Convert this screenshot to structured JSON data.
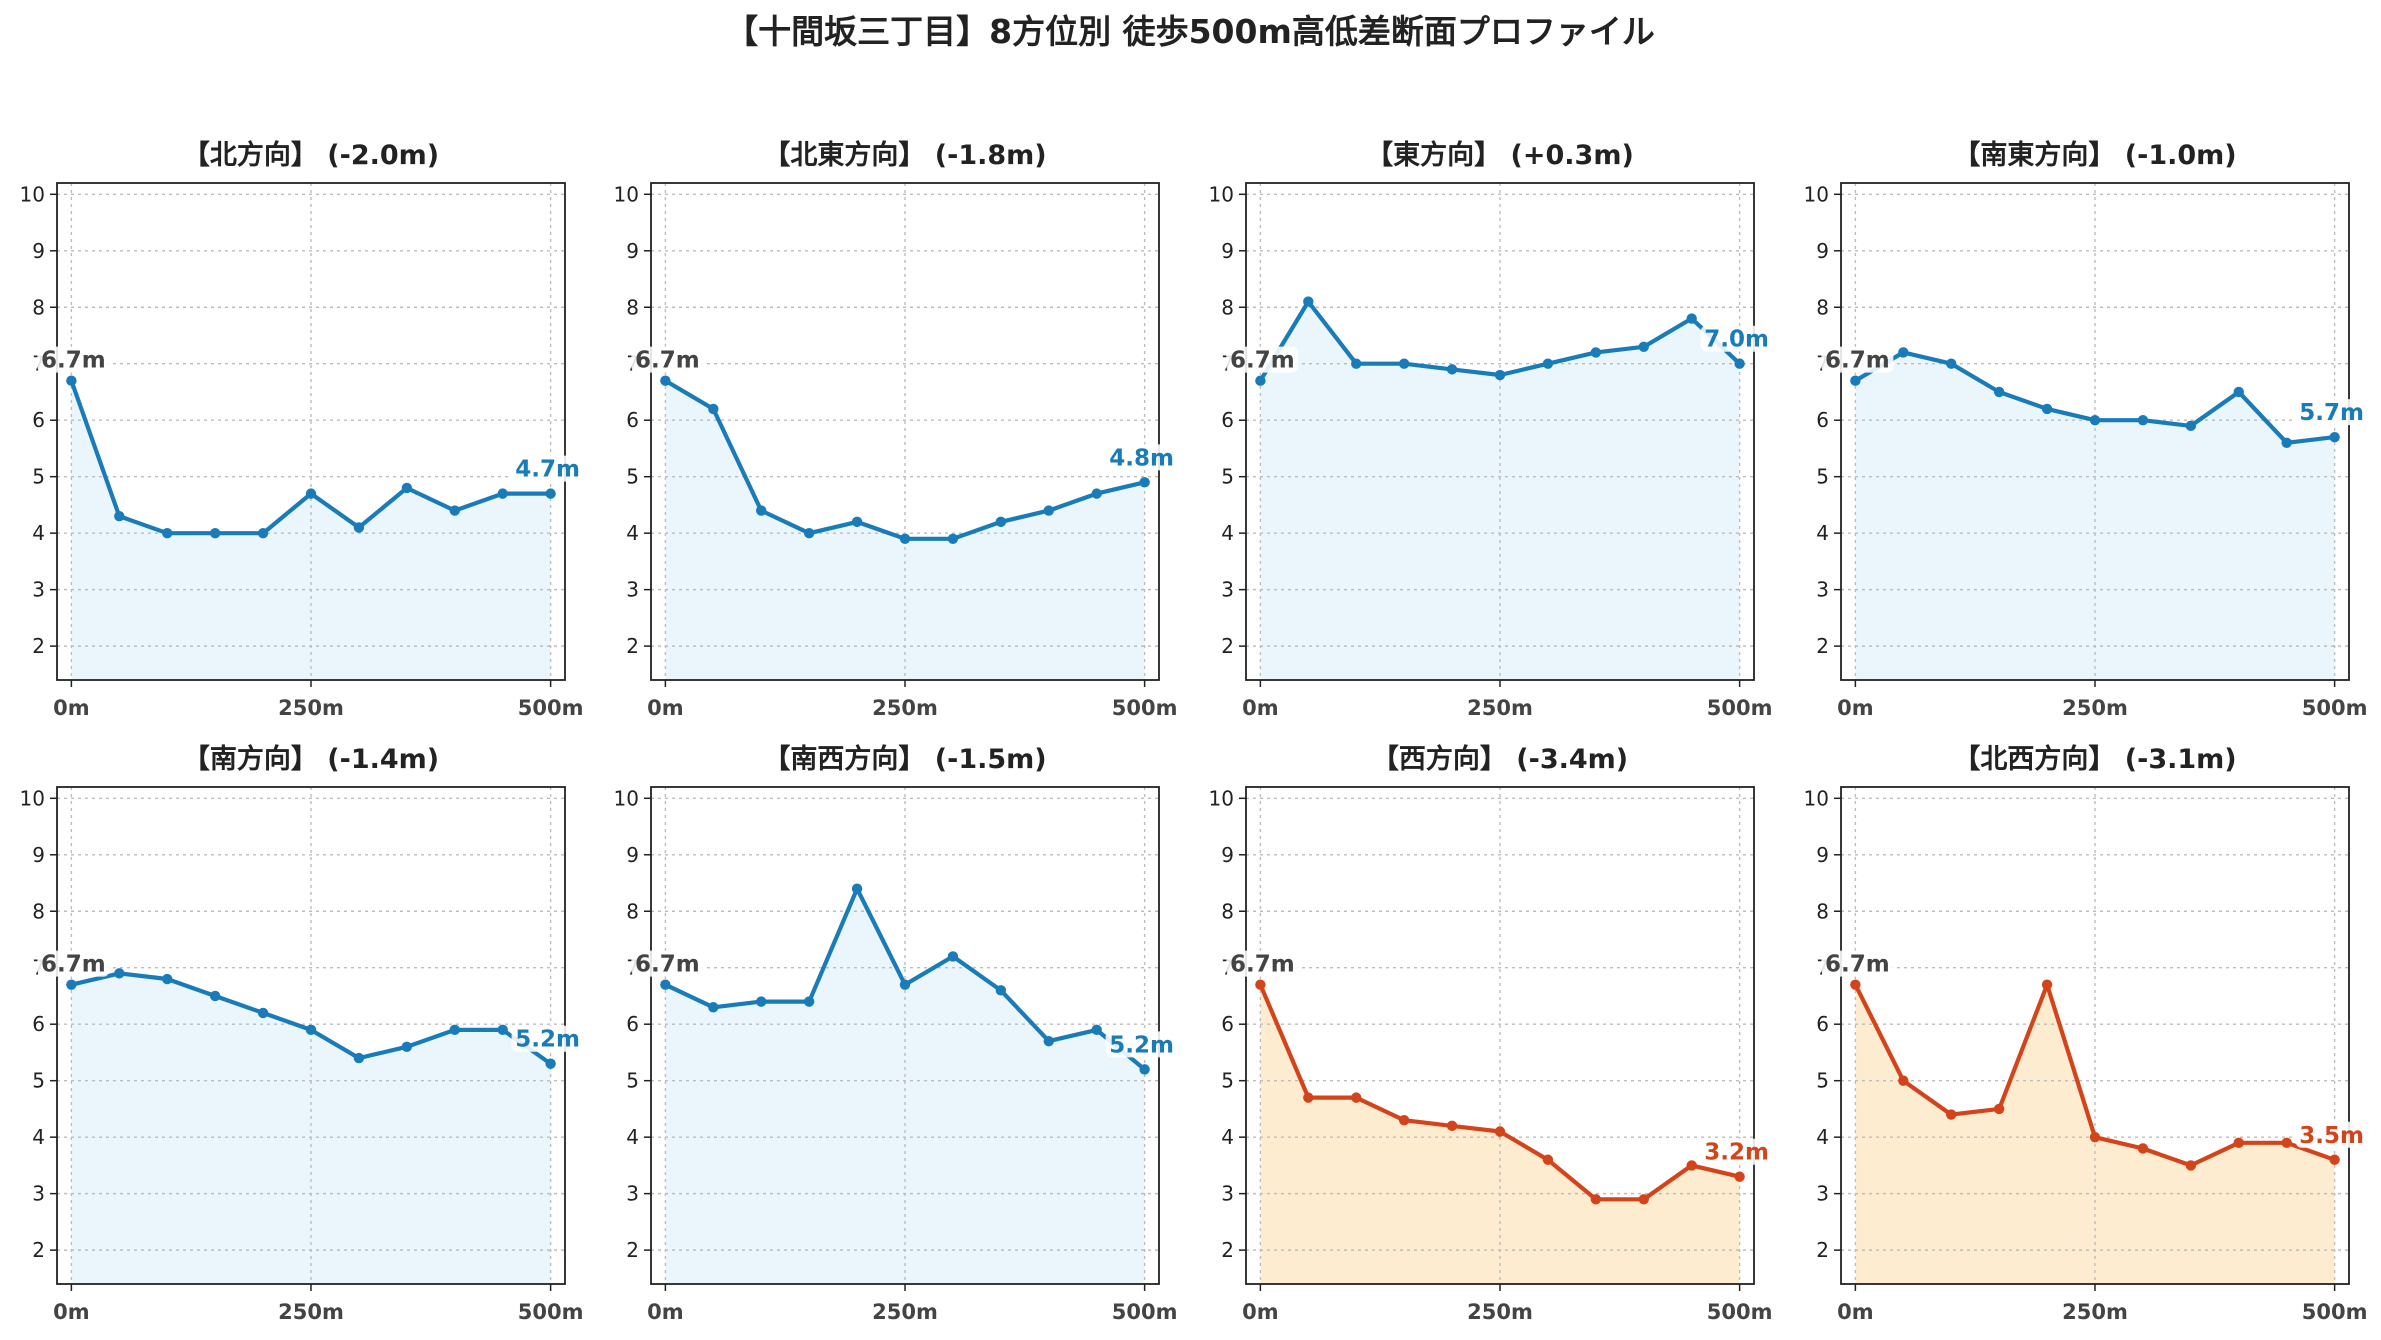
{
  "title": "【十間坂三丁目】8方位別 徒歩500m高低差断面プロファイル",
  "colors": {
    "down": "#1a7bb9",
    "down_fill": "#eaf6fb",
    "steep": "#d4441a",
    "steep_fill": "#feecd0",
    "start_label": "#444444"
  },
  "chart_data": [
    {
      "type": "area",
      "title": "【北方向】 (-2.0m)",
      "x": [
        0,
        50,
        100,
        150,
        200,
        250,
        300,
        350,
        400,
        450,
        500
      ],
      "values": [
        6.7,
        4.3,
        4.0,
        4.0,
        4.0,
        4.7,
        4.1,
        4.8,
        4.4,
        4.7,
        4.7
      ],
      "start_label": "6.7m",
      "end_label": "4.7m",
      "style": "down",
      "xticks": [
        "0m",
        "250m",
        "500m"
      ],
      "yticks": [
        "2",
        "3",
        "4",
        "5",
        "6",
        "7",
        "8",
        "9",
        "10"
      ],
      "ylim": [
        1.4,
        10.2
      ],
      "xlim": [
        -15,
        515
      ],
      "grid": true
    },
    {
      "type": "area",
      "title": "【北東方向】 (-1.8m)",
      "x": [
        0,
        50,
        100,
        150,
        200,
        250,
        300,
        350,
        400,
        450,
        500
      ],
      "values": [
        6.7,
        6.2,
        4.4,
        4.0,
        4.2,
        3.9,
        3.9,
        4.2,
        4.4,
        4.7,
        4.9
      ],
      "start_label": "6.7m",
      "end_label": "4.8m",
      "style": "down",
      "xticks": [
        "0m",
        "250m",
        "500m"
      ],
      "yticks": [
        "2",
        "3",
        "4",
        "5",
        "6",
        "7",
        "8",
        "9",
        "10"
      ],
      "ylim": [
        1.4,
        10.2
      ],
      "xlim": [
        -15,
        515
      ],
      "grid": true
    },
    {
      "type": "area",
      "title": "【東方向】 (+0.3m)",
      "x": [
        0,
        50,
        100,
        150,
        200,
        250,
        300,
        350,
        400,
        450,
        500
      ],
      "values": [
        6.7,
        8.1,
        7.0,
        7.0,
        6.9,
        6.8,
        7.0,
        7.2,
        7.3,
        7.8,
        7.0
      ],
      "start_label": "6.7m",
      "end_label": "7.0m",
      "style": "down",
      "xticks": [
        "0m",
        "250m",
        "500m"
      ],
      "yticks": [
        "2",
        "3",
        "4",
        "5",
        "6",
        "7",
        "8",
        "9",
        "10"
      ],
      "ylim": [
        1.4,
        10.2
      ],
      "xlim": [
        -15,
        515
      ],
      "grid": true
    },
    {
      "type": "area",
      "title": "【南東方向】 (-1.0m)",
      "x": [
        0,
        50,
        100,
        150,
        200,
        250,
        300,
        350,
        400,
        450,
        500
      ],
      "values": [
        6.7,
        7.2,
        7.0,
        6.5,
        6.2,
        6.0,
        6.0,
        5.9,
        6.5,
        5.6,
        5.7
      ],
      "start_label": "6.7m",
      "end_label": "5.7m",
      "style": "down",
      "xticks": [
        "0m",
        "250m",
        "500m"
      ],
      "yticks": [
        "2",
        "3",
        "4",
        "5",
        "6",
        "7",
        "8",
        "9",
        "10"
      ],
      "ylim": [
        1.4,
        10.2
      ],
      "xlim": [
        -15,
        515
      ],
      "grid": true
    },
    {
      "type": "area",
      "title": "【南方向】 (-1.4m)",
      "x": [
        0,
        50,
        100,
        150,
        200,
        250,
        300,
        350,
        400,
        450,
        500
      ],
      "values": [
        6.7,
        6.9,
        6.8,
        6.5,
        6.2,
        5.9,
        5.4,
        5.6,
        5.9,
        5.9,
        5.3
      ],
      "start_label": "6.7m",
      "end_label": "5.2m",
      "style": "down",
      "xticks": [
        "0m",
        "250m",
        "500m"
      ],
      "yticks": [
        "2",
        "3",
        "4",
        "5",
        "6",
        "7",
        "8",
        "9",
        "10"
      ],
      "ylim": [
        1.4,
        10.2
      ],
      "xlim": [
        -15,
        515
      ],
      "grid": true
    },
    {
      "type": "area",
      "title": "【南西方向】 (-1.5m)",
      "x": [
        0,
        50,
        100,
        150,
        200,
        250,
        300,
        350,
        400,
        450,
        500
      ],
      "values": [
        6.7,
        6.3,
        6.4,
        6.4,
        8.4,
        6.7,
        7.2,
        6.6,
        5.7,
        5.9,
        5.2
      ],
      "start_label": "6.7m",
      "end_label": "5.2m",
      "style": "down",
      "xticks": [
        "0m",
        "250m",
        "500m"
      ],
      "yticks": [
        "2",
        "3",
        "4",
        "5",
        "6",
        "7",
        "8",
        "9",
        "10"
      ],
      "ylim": [
        1.4,
        10.2
      ],
      "xlim": [
        -15,
        515
      ],
      "grid": true
    },
    {
      "type": "area",
      "title": "【西方向】 (-3.4m)",
      "x": [
        0,
        50,
        100,
        150,
        200,
        250,
        300,
        350,
        400,
        450,
        500
      ],
      "values": [
        6.7,
        4.7,
        4.7,
        4.3,
        4.2,
        4.1,
        3.6,
        2.9,
        2.9,
        3.5,
        3.3
      ],
      "start_label": "6.7m",
      "end_label": "3.2m",
      "style": "steep",
      "xticks": [
        "0m",
        "250m",
        "500m"
      ],
      "yticks": [
        "2",
        "3",
        "4",
        "5",
        "6",
        "7",
        "8",
        "9",
        "10"
      ],
      "ylim": [
        1.4,
        10.2
      ],
      "xlim": [
        -15,
        515
      ],
      "grid": true
    },
    {
      "type": "area",
      "title": "【北西方向】 (-3.1m)",
      "x": [
        0,
        50,
        100,
        150,
        200,
        250,
        300,
        350,
        400,
        450,
        500
      ],
      "values": [
        6.7,
        5.0,
        4.4,
        4.5,
        6.7,
        4.0,
        3.8,
        3.5,
        3.9,
        3.9,
        3.6
      ],
      "start_label": "6.7m",
      "end_label": "3.5m",
      "style": "steep",
      "xticks": [
        "0m",
        "250m",
        "500m"
      ],
      "yticks": [
        "2",
        "3",
        "4",
        "5",
        "6",
        "7",
        "8",
        "9",
        "10"
      ],
      "ylim": [
        1.4,
        10.2
      ],
      "xlim": [
        -15,
        515
      ],
      "grid": true
    }
  ]
}
